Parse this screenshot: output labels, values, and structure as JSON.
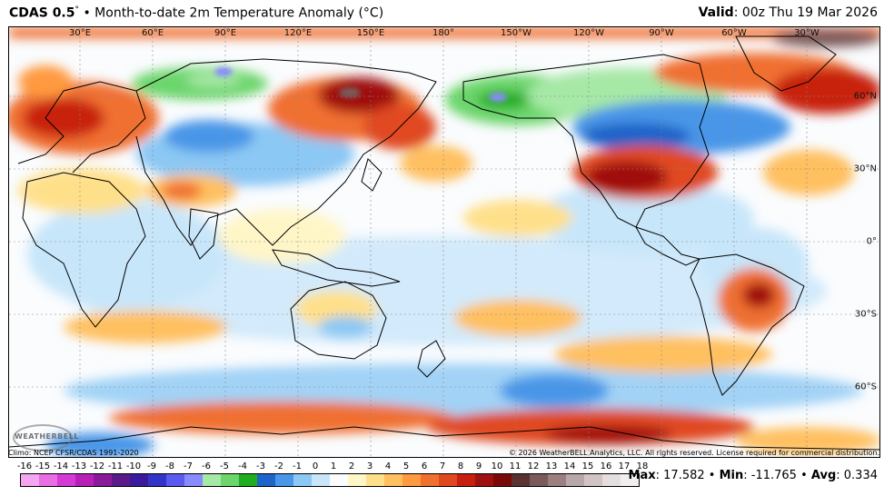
{
  "header": {
    "model": "CDAS 0.5",
    "degree": "°",
    "bullet": "•",
    "description": "Month-to-date 2m Temperature Anomaly (°C)",
    "valid_label": "Valid",
    "valid_value": ": 00z Thu 19 Mar 2026"
  },
  "map": {
    "lon_labels": [
      "30°E",
      "60°E",
      "90°E",
      "120°E",
      "150°E",
      "180°",
      "150°W",
      "120°W",
      "90°W",
      "60°W",
      "30°W"
    ],
    "lat_labels": [
      "60°N",
      "30°N",
      "0°",
      "30°S",
      "60°S"
    ],
    "logo_text": "WEATHERBELL"
  },
  "footer": {
    "climo": "Climo: NCEP CFSR/CDAS 1991-2020",
    "copyright": "© 2026 WeatherBELL Analytics, LLC. All rights reserved. License required for commercial distribution."
  },
  "colorbar": {
    "labels": [
      "-16",
      "-15",
      "-14",
      "-13",
      "-12",
      "-11",
      "-10",
      "-9",
      "-8",
      "-7",
      "-6",
      "-5",
      "-4",
      "-3",
      "-2",
      "-1",
      "0",
      "1",
      "2",
      "3",
      "4",
      "5",
      "6",
      "7",
      "8",
      "9",
      "10",
      "11",
      "12",
      "13",
      "14",
      "15",
      "16",
      "17",
      "18"
    ],
    "colors": [
      "#f4a6f0",
      "#e86ee4",
      "#d63ad6",
      "#b81fb6",
      "#8a1a9a",
      "#5a1a8a",
      "#3c1a9e",
      "#3434c8",
      "#5a5af0",
      "#8a8aff",
      "#a6e8a6",
      "#6cd66c",
      "#1fae1f",
      "#1f64c8",
      "#4a96e8",
      "#8cc8f4",
      "#c8e6fa",
      "#fafcfe",
      "#fff6c8",
      "#ffe08a",
      "#ffc060",
      "#ff9a40",
      "#f07030",
      "#e04820",
      "#c82010",
      "#a01010",
      "#7a0a0a",
      "#5a3232",
      "#7a5a5a",
      "#9a8080",
      "#b8a8a8",
      "#d0c4c4",
      "#e6dede",
      "#f2eeee"
    ]
  },
  "stats": {
    "max_label": "Max",
    "max_value": ": 17.582",
    "sep1": " • ",
    "min_label": "Min",
    "min_value": ": -11.765",
    "sep2": " • ",
    "avg_label": "Avg",
    "avg_value": ": 0.334"
  }
}
